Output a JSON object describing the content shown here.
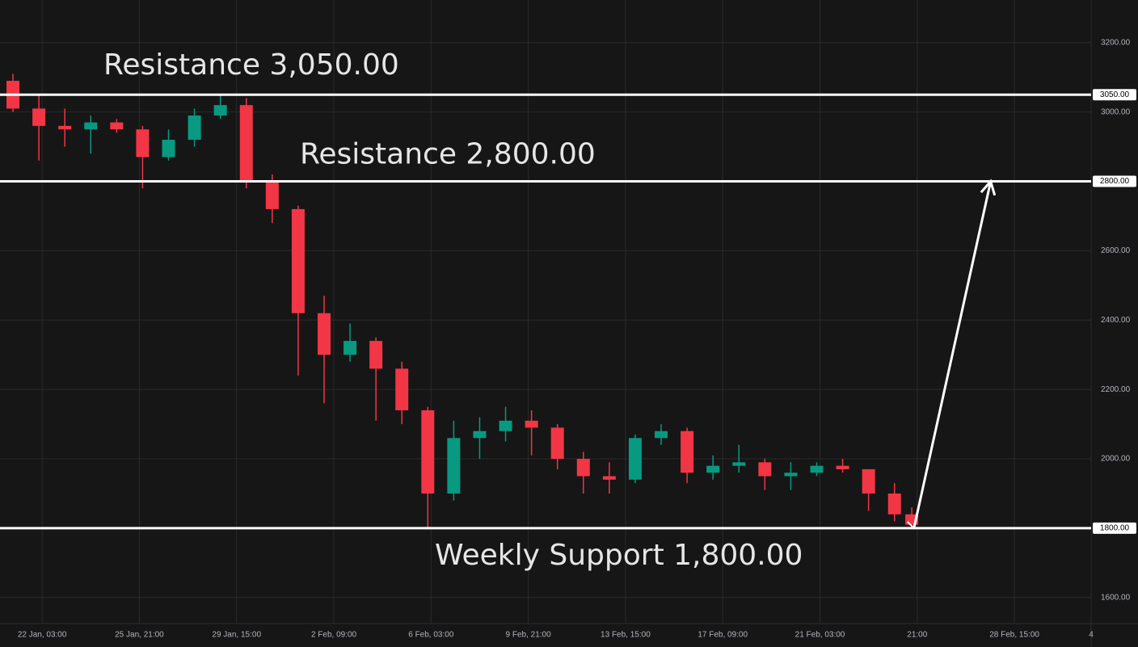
{
  "chart_data": {
    "type": "candlestick",
    "up_color": "#089981",
    "down_color": "#f23645",
    "grid": true,
    "xlim": [
      -36,
      974
    ],
    "xticks": [
      {
        "value": 3,
        "label": "22 Jan, 03:00"
      },
      {
        "value": 93,
        "label": "25 Jan, 21:00"
      },
      {
        "value": 183,
        "label": "29 Jan, 15:00"
      },
      {
        "value": 273,
        "label": "2 Feb, 09:00"
      },
      {
        "value": 363,
        "label": "6 Feb, 03:00"
      },
      {
        "value": 453,
        "label": "9 Feb, 21:00"
      },
      {
        "value": 543,
        "label": "13 Feb, 15:00"
      },
      {
        "value": 633,
        "label": "17 Feb, 09:00"
      },
      {
        "value": 723,
        "label": "21 Feb, 03:00"
      },
      {
        "value": 813,
        "label": "21:00"
      },
      {
        "value": 903,
        "label": "28 Feb, 15:00"
      },
      {
        "value": 974,
        "label": "4"
      }
    ],
    "ylim": [
      1525,
      3323
    ],
    "yticks": [
      {
        "value": 1600,
        "label": "1600.00"
      },
      {
        "value": 1800,
        "label": "1800.00"
      },
      {
        "value": 2000,
        "label": "2000.00"
      },
      {
        "value": 2200,
        "label": "2200.00"
      },
      {
        "value": 2400,
        "label": "2400.00"
      },
      {
        "value": 2600,
        "label": "2600.00"
      },
      {
        "value": 2800,
        "label": "2800.00"
      },
      {
        "value": 3000,
        "label": "3000.00"
      },
      {
        "value": 3200,
        "label": "3200.00"
      }
    ],
    "candles": {
      "x": [
        -24,
        0,
        24,
        48,
        72,
        96,
        120,
        144,
        168,
        192,
        216,
        240,
        264,
        288,
        312,
        336,
        360,
        384,
        408,
        432,
        456,
        480,
        504,
        528,
        552,
        576,
        600,
        624,
        648,
        672,
        696,
        720,
        744,
        768,
        792,
        808
      ],
      "open": [
        3090,
        3010,
        2960,
        2950,
        2970,
        2950,
        2870,
        2920,
        2990,
        3020,
        2800,
        2720,
        2420,
        2300,
        2340,
        2260,
        2140,
        1900,
        2060,
        2080,
        2110,
        2090,
        2000,
        1950,
        1940,
        2060,
        2080,
        1960,
        1980,
        1990,
        1950,
        1960,
        1980,
        1970,
        1900,
        1840
      ],
      "high": [
        3110,
        3050,
        3010,
        2990,
        2980,
        2960,
        2950,
        3010,
        3050,
        3040,
        2820,
        2730,
        2470,
        2390,
        2350,
        2280,
        2150,
        2110,
        2120,
        2150,
        2140,
        2100,
        2020,
        1990,
        2070,
        2100,
        2090,
        2010,
        2040,
        2000,
        1990,
        1990,
        2000,
        1970,
        1930,
        1860
      ],
      "low": [
        3000,
        2860,
        2900,
        2880,
        2940,
        2780,
        2860,
        2900,
        2980,
        2780,
        2680,
        2240,
        2160,
        2280,
        2110,
        2100,
        1800,
        1880,
        2000,
        2050,
        2010,
        1970,
        1900,
        1900,
        1930,
        2040,
        1930,
        1940,
        1960,
        1910,
        1910,
        1950,
        1960,
        1850,
        1820,
        1805
      ],
      "close": [
        3010,
        2960,
        2950,
        2970,
        2950,
        2870,
        2920,
        2990,
        3020,
        2800,
        2720,
        2420,
        2300,
        2340,
        2260,
        2140,
        1900,
        2060,
        2080,
        2110,
        2090,
        2000,
        1950,
        1940,
        2060,
        2080,
        1960,
        1980,
        1990,
        1950,
        1960,
        1980,
        1970,
        1900,
        1840,
        1810
      ]
    },
    "levels": [
      {
        "value": 3050,
        "label": "Resistance 3,050.00",
        "tag": "3050.00"
      },
      {
        "value": 2800,
        "label": "Resistance 2,800.00",
        "tag": "2800.00"
      },
      {
        "value": 1800,
        "label": "Weekly Support 1,800.00",
        "tag": "1800.00"
      }
    ],
    "arrow": {
      "x": [
        810,
        881
      ],
      "y": [
        1800,
        2800
      ]
    },
    "line_color": "#ffffff"
  }
}
